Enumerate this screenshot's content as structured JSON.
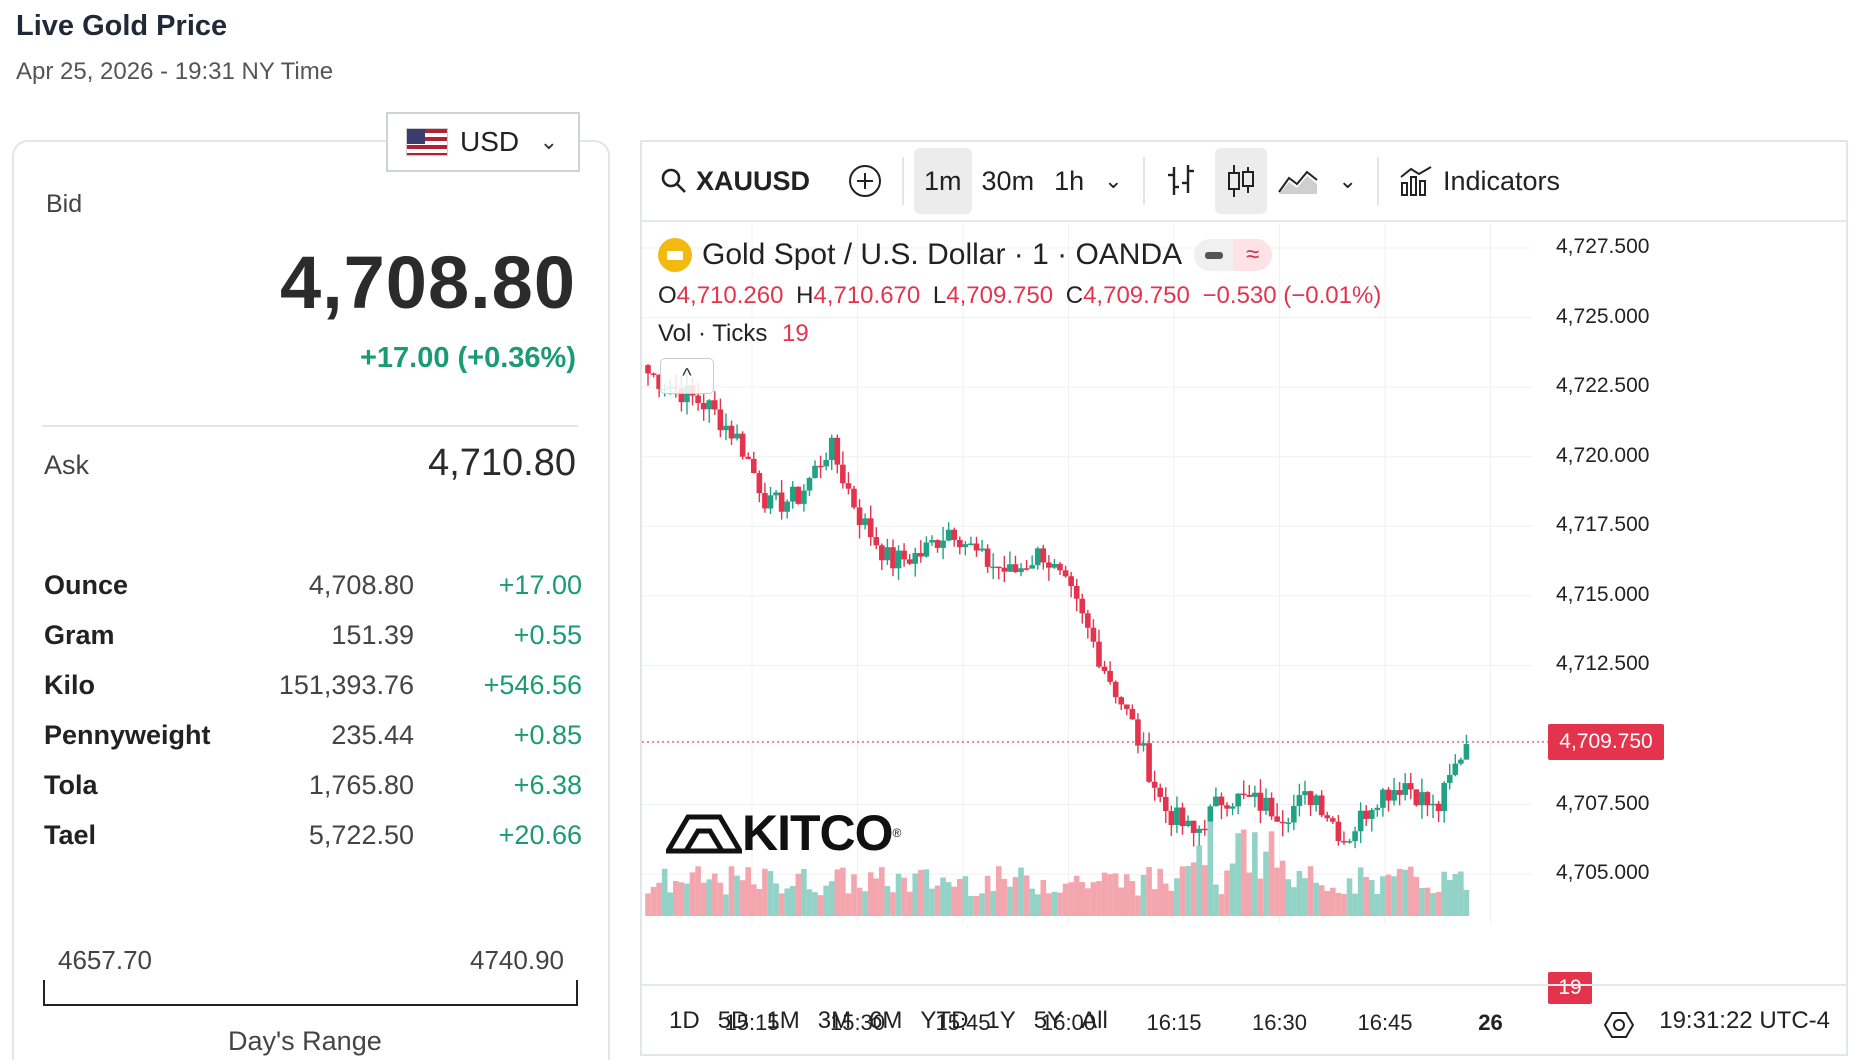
{
  "header": {
    "title": "Live Gold Price",
    "subtitle": "Apr 25, 2026 - 19:31 NY Time"
  },
  "currency": {
    "selected": "USD",
    "flag_icon": "us-flag-icon"
  },
  "quote": {
    "bid_label": "Bid",
    "bid_value": "4,708.80",
    "bid_change": "+17.00 (+0.36%)",
    "ask_label": "Ask",
    "ask_value": "4,710.80"
  },
  "units": [
    {
      "name": "Ounce",
      "price": "4,708.80",
      "change": "+17.00"
    },
    {
      "name": "Gram",
      "price": "151.39",
      "change": "+0.55"
    },
    {
      "name": "Kilo",
      "price": "151,393.76",
      "change": "+546.56"
    },
    {
      "name": "Pennyweight",
      "price": "235.44",
      "change": "+0.85"
    },
    {
      "name": "Tola",
      "price": "1,765.80",
      "change": "+6.38"
    },
    {
      "name": "Tael",
      "price": "5,722.50",
      "change": "+20.66"
    }
  ],
  "days_range": {
    "low": "4657.70",
    "high": "4740.90",
    "label": "Day's Range"
  },
  "toolbar": {
    "symbol": "XAUUSD",
    "intervals": [
      "1m",
      "30m",
      "1h"
    ],
    "active_interval": "1m",
    "indicators_label": "Indicators"
  },
  "legend": {
    "title": "Gold Spot / U.S. Dollar · 1 · OANDA",
    "o_label": "O",
    "o": "4,710.260",
    "h_label": "H",
    "h": "4,710.670",
    "l_label": "L",
    "l": "4,709.750",
    "c_label": "C",
    "c": "4,709.750",
    "change": "−0.530 (−0.01%)",
    "vol_label": "Vol · Ticks",
    "vol_value": "19",
    "pill_icon": "≈"
  },
  "brand": {
    "logo_text": "KITCO",
    "reg": "®"
  },
  "colors": {
    "up": "#22a285",
    "down": "#e3334d",
    "vol_up": "#93d2c6",
    "vol_down": "#f4a6ae"
  },
  "chart_data": {
    "type": "candlestick",
    "y_ticks": [
      "4,727.500",
      "4,725.000",
      "4,722.500",
      "4,720.000",
      "4,717.500",
      "4,715.000",
      "4,712.500",
      "4,707.500",
      "4,705.000"
    ],
    "ylim": [
      4704.5,
      4727.5
    ],
    "x_ticks": [
      "15:15",
      "15:30",
      "15:45",
      "16:00",
      "16:15",
      "16:30",
      "16:45",
      "26"
    ],
    "last_price": 4709.75,
    "last_price_label": "4,709.750",
    "last_volume_label": "19",
    "trend": [
      4723.0,
      4722.4,
      4721.8,
      4720.6,
      4718.2,
      4718.6,
      4720.4,
      4717.8,
      4716.2,
      4716.5,
      4717.5,
      4716.3,
      4715.8,
      4716.6,
      4714.9,
      4712.6,
      4710.3,
      4707.4,
      4706.4,
      4707.8,
      4707.6,
      4707.2,
      4707.9,
      4706.2,
      4707.8,
      4708.3,
      4707.2,
      4709.8
    ]
  },
  "ranges": [
    "1D",
    "5D",
    "1M",
    "3M",
    "6M",
    "YTD",
    "1Y",
    "5Y",
    "All"
  ],
  "clock": "19:31:22 UTC-4"
}
